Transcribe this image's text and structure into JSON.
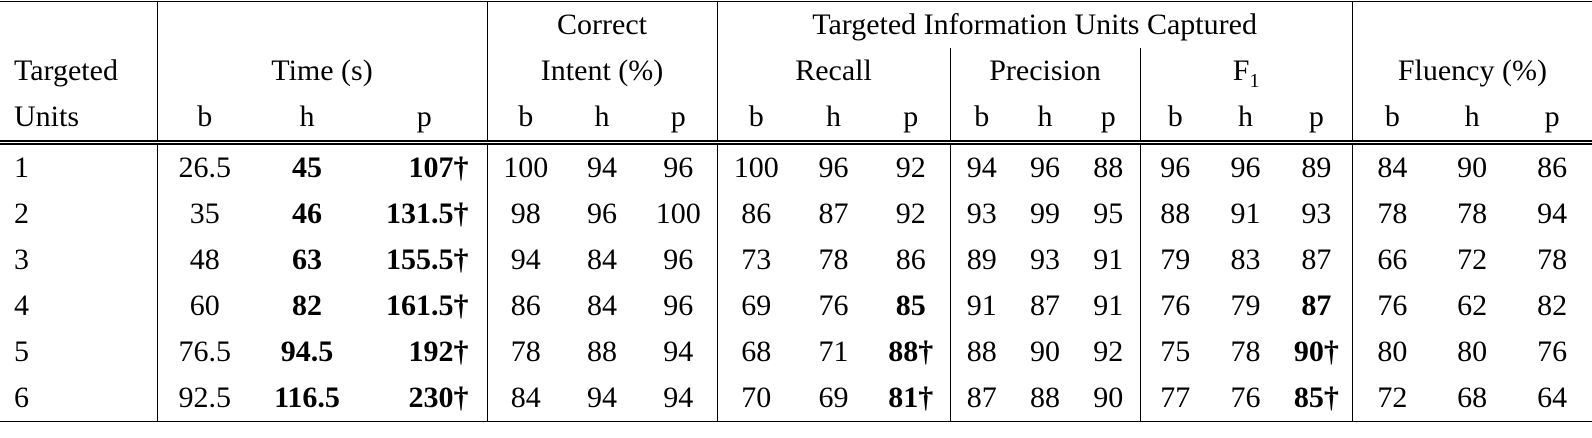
{
  "header": {
    "row1": {
      "correct": "Correct",
      "targeted_info": "Targeted Information Units Captured"
    },
    "row2": {
      "targeted": "Targeted",
      "time": "Time (s)",
      "intent": "Intent (%)",
      "recall": "Recall",
      "precision": "Precision",
      "f1_base": "F",
      "f1_sub": "1",
      "fluency": "Fluency (%)"
    },
    "row3": {
      "units": "Units",
      "subcols": [
        "b",
        "h",
        "p"
      ]
    }
  },
  "rows": [
    {
      "unit": "1",
      "cells": [
        {
          "v": "26.5"
        },
        {
          "v": "45",
          "bold": true
        },
        {
          "v": "107†",
          "bold": true
        },
        {
          "v": "100"
        },
        {
          "v": "94"
        },
        {
          "v": "96"
        },
        {
          "v": "100"
        },
        {
          "v": "96"
        },
        {
          "v": "92"
        },
        {
          "v": "94"
        },
        {
          "v": "96"
        },
        {
          "v": "88"
        },
        {
          "v": "96"
        },
        {
          "v": "96"
        },
        {
          "v": "89"
        },
        {
          "v": "84"
        },
        {
          "v": "90"
        },
        {
          "v": "86"
        }
      ]
    },
    {
      "unit": "2",
      "cells": [
        {
          "v": "35"
        },
        {
          "v": "46",
          "bold": true
        },
        {
          "v": "131.5†",
          "bold": true
        },
        {
          "v": "98"
        },
        {
          "v": "96"
        },
        {
          "v": "100"
        },
        {
          "v": "86"
        },
        {
          "v": "87"
        },
        {
          "v": "92"
        },
        {
          "v": "93"
        },
        {
          "v": "99"
        },
        {
          "v": "95"
        },
        {
          "v": "88"
        },
        {
          "v": "91"
        },
        {
          "v": "93"
        },
        {
          "v": "78"
        },
        {
          "v": "78"
        },
        {
          "v": "94"
        }
      ]
    },
    {
      "unit": "3",
      "cells": [
        {
          "v": "48"
        },
        {
          "v": "63",
          "bold": true
        },
        {
          "v": "155.5†",
          "bold": true
        },
        {
          "v": "94"
        },
        {
          "v": "84"
        },
        {
          "v": "96"
        },
        {
          "v": "73"
        },
        {
          "v": "78"
        },
        {
          "v": "86"
        },
        {
          "v": "89"
        },
        {
          "v": "93"
        },
        {
          "v": "91"
        },
        {
          "v": "79"
        },
        {
          "v": "83"
        },
        {
          "v": "87"
        },
        {
          "v": "66"
        },
        {
          "v": "72"
        },
        {
          "v": "78"
        }
      ]
    },
    {
      "unit": "4",
      "cells": [
        {
          "v": "60"
        },
        {
          "v": "82",
          "bold": true
        },
        {
          "v": "161.5†",
          "bold": true
        },
        {
          "v": "86"
        },
        {
          "v": "84"
        },
        {
          "v": "96"
        },
        {
          "v": "69"
        },
        {
          "v": "76"
        },
        {
          "v": "85",
          "bold": true
        },
        {
          "v": "91"
        },
        {
          "v": "87"
        },
        {
          "v": "91"
        },
        {
          "v": "76"
        },
        {
          "v": "79"
        },
        {
          "v": "87",
          "bold": true
        },
        {
          "v": "76"
        },
        {
          "v": "62"
        },
        {
          "v": "82"
        }
      ]
    },
    {
      "unit": "5",
      "cells": [
        {
          "v": "76.5"
        },
        {
          "v": "94.5",
          "bold": true
        },
        {
          "v": "192†",
          "bold": true
        },
        {
          "v": "78"
        },
        {
          "v": "88"
        },
        {
          "v": "94"
        },
        {
          "v": "68"
        },
        {
          "v": "71"
        },
        {
          "v": "88†",
          "bold": true
        },
        {
          "v": "88"
        },
        {
          "v": "90"
        },
        {
          "v": "92"
        },
        {
          "v": "75"
        },
        {
          "v": "78"
        },
        {
          "v": "90†",
          "bold": true
        },
        {
          "v": "80"
        },
        {
          "v": "80"
        },
        {
          "v": "76"
        }
      ]
    },
    {
      "unit": "6",
      "cells": [
        {
          "v": "92.5"
        },
        {
          "v": "116.5",
          "bold": true
        },
        {
          "v": "230†",
          "bold": true
        },
        {
          "v": "84"
        },
        {
          "v": "94"
        },
        {
          "v": "94"
        },
        {
          "v": "70"
        },
        {
          "v": "69"
        },
        {
          "v": "81†",
          "bold": true
        },
        {
          "v": "87"
        },
        {
          "v": "88"
        },
        {
          "v": "90"
        },
        {
          "v": "77"
        },
        {
          "v": "76"
        },
        {
          "v": "85†",
          "bold": true
        },
        {
          "v": "72"
        },
        {
          "v": "68"
        },
        {
          "v": "64"
        }
      ]
    }
  ]
}
